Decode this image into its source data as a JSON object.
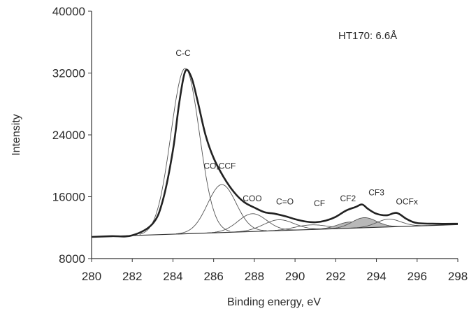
{
  "chart_data": {
    "type": "line",
    "title": "",
    "xlabel": "Binding energy, eV",
    "ylabel": "Intensity",
    "xlim": [
      280,
      298
    ],
    "ylim": [
      8000,
      40000
    ],
    "xticks": [
      280,
      282,
      284,
      286,
      288,
      290,
      292,
      294,
      296,
      298
    ],
    "yticks": [
      8000,
      16000,
      24000,
      32000,
      40000
    ],
    "grid": false,
    "legend": "none",
    "inset_label": "HT170: 6.6Å",
    "baseline": {
      "x": [
        280,
        298
      ],
      "y": [
        10800,
        12400
      ]
    },
    "envelope": {
      "x": [
        280,
        281,
        282,
        283,
        283.5,
        284,
        284.3,
        284.6,
        284.9,
        285.2,
        285.6,
        286,
        286.5,
        287,
        287.5,
        288,
        288.5,
        289,
        289.5,
        290,
        290.5,
        291,
        291.5,
        292,
        292.5,
        293,
        293.3,
        293.6,
        294,
        294.5,
        295,
        295.5,
        296,
        297,
        298
      ],
      "y": [
        10800,
        10900,
        11000,
        12500,
        15500,
        22000,
        28000,
        32200,
        31500,
        28500,
        24000,
        21000,
        18500,
        16600,
        15300,
        14600,
        14000,
        13800,
        13500,
        13100,
        12800,
        12700,
        12900,
        13400,
        14200,
        14700,
        15000,
        14400,
        13800,
        13600,
        13900,
        13100,
        12600,
        12500,
        12500
      ]
    },
    "series": [
      {
        "name": "C-C",
        "center": 284.6,
        "height": 21400,
        "width": 0.7
      },
      {
        "name": "CO,CCF",
        "center": 286.4,
        "height": 6200,
        "width": 0.7
      },
      {
        "name": "COO",
        "center": 287.9,
        "height": 2300,
        "width": 0.7
      },
      {
        "name": "C=O",
        "center": 289.2,
        "height": 1400,
        "width": 0.75
      },
      {
        "name": "CF",
        "center": 290.8,
        "height": 600,
        "width": 0.8
      },
      {
        "name": "CF2",
        "center": 292.7,
        "height": 800,
        "width": 0.6
      },
      {
        "name": "CF3",
        "center": 293.4,
        "height": 1300,
        "width": 0.6
      },
      {
        "name": "OCFx",
        "center": 294.6,
        "height": 1000,
        "width": 0.6
      }
    ],
    "peak_labels": [
      {
        "text": "C-C",
        "x": 284.5,
        "y": 34200
      },
      {
        "text": "CO,CCF",
        "x": 286.3,
        "y": 19600
      },
      {
        "text": "COO",
        "x": 287.9,
        "y": 15400
      },
      {
        "text": "C=O",
        "x": 289.5,
        "y": 15000
      },
      {
        "text": "CF",
        "x": 291.2,
        "y": 14800
      },
      {
        "text": "CF2",
        "x": 292.6,
        "y": 15400
      },
      {
        "text": "CF3",
        "x": 294.0,
        "y": 16200
      },
      {
        "text": "OCFx",
        "x": 295.5,
        "y": 15000
      }
    ]
  }
}
